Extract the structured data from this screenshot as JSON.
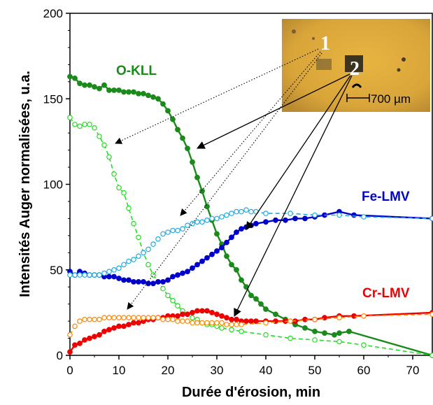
{
  "chart_data": {
    "type": "line",
    "title": "",
    "xlabel": "Durée d'érosion, min",
    "ylabel": "Intensités Auger normalisées, u.a.",
    "xlim": [
      0,
      74
    ],
    "ylim": [
      0,
      200
    ],
    "xticks": [
      "0",
      "10",
      "20",
      "30",
      "40",
      "50",
      "60",
      "70"
    ],
    "yticks": [
      "0",
      "50",
      "100",
      "150",
      "200"
    ],
    "grid": false,
    "series_labels": [
      {
        "text": "O-KLL",
        "color": "#1a8a1a"
      },
      {
        "text": "Fe-LMV",
        "color": "#0000cc"
      },
      {
        "text": "Cr-LMV",
        "color": "#ee0000"
      }
    ],
    "series": [
      {
        "key": "O-KLL",
        "color": "#1a8a1a",
        "style": "solid",
        "marker": "filled",
        "x": [
          0,
          1,
          2,
          3,
          4,
          5,
          6,
          7,
          8,
          9,
          10,
          11,
          12,
          13,
          14,
          15,
          16,
          17,
          18,
          19,
          20,
          21,
          22,
          23,
          24,
          25,
          26,
          27,
          28,
          29,
          30,
          31,
          32,
          33,
          34,
          35,
          36,
          37,
          38,
          39,
          40,
          42,
          44,
          46,
          48,
          50,
          52,
          54,
          55,
          57,
          74
        ],
        "y": [
          163,
          162,
          159,
          158,
          158,
          157,
          156,
          158,
          155,
          155,
          155,
          154,
          154,
          154,
          153,
          153,
          152,
          151,
          150,
          147,
          143,
          138,
          132,
          127,
          121,
          113,
          104,
          96,
          87,
          79,
          71,
          65,
          58,
          53,
          50,
          44,
          40,
          35,
          33,
          30,
          27,
          24,
          21,
          18,
          16,
          14,
          13,
          12,
          13,
          14,
          0
        ]
      },
      {
        "key": "O-KLL-2",
        "color": "#22dd22",
        "style": "dashed",
        "marker": "open",
        "x": [
          0,
          1,
          2,
          3,
          4,
          5,
          6,
          7,
          8,
          9,
          10,
          11,
          12,
          13,
          14,
          15,
          16,
          17,
          18,
          19,
          20,
          21,
          22,
          23,
          24,
          25,
          26,
          27,
          28,
          29,
          30,
          31,
          33,
          35,
          40,
          45,
          50,
          55,
          60,
          74
        ],
        "y": [
          139,
          135,
          134,
          135,
          135,
          133,
          128,
          123,
          116,
          106,
          98,
          95,
          86,
          77,
          69,
          60,
          53,
          47,
          43,
          39,
          35,
          32,
          29,
          26,
          24,
          22,
          21,
          19,
          18,
          18,
          17,
          16,
          15,
          14,
          12,
          10,
          9,
          8,
          6,
          0
        ]
      },
      {
        "key": "Fe-LMV",
        "color": "#0000cc",
        "style": "solid",
        "marker": "filled",
        "x": [
          0,
          1,
          2,
          3,
          4,
          5,
          6,
          7,
          8,
          9,
          10,
          11,
          12,
          13,
          14,
          15,
          16,
          17,
          18,
          19,
          20,
          21,
          22,
          23,
          24,
          25,
          26,
          27,
          28,
          29,
          30,
          31,
          32,
          33,
          34,
          35,
          36,
          37,
          38,
          40,
          42,
          44,
          46,
          48,
          50,
          52,
          55,
          58,
          74
        ],
        "y": [
          49,
          47,
          49,
          48,
          47,
          47,
          47,
          46,
          46,
          46,
          45,
          44,
          44,
          43,
          43,
          43,
          42,
          42,
          43,
          43,
          44,
          46,
          47,
          48,
          49,
          51,
          53,
          55,
          57,
          59,
          61,
          63,
          66,
          69,
          72,
          74,
          75,
          76,
          77,
          78,
          79,
          79,
          80,
          80,
          81,
          82,
          84,
          82,
          80
        ]
      },
      {
        "key": "Fe-LMV-2",
        "color": "#22aadd",
        "style": "dashed",
        "marker": "open",
        "x": [
          0,
          1,
          2,
          3,
          4,
          5,
          6,
          7,
          8,
          9,
          10,
          11,
          12,
          13,
          14,
          15,
          16,
          17,
          18,
          19,
          20,
          21,
          22,
          23,
          24,
          25,
          26,
          27,
          28,
          29,
          30,
          31,
          32,
          33,
          34,
          35,
          36,
          37,
          38,
          40,
          45,
          50,
          55,
          60,
          74
        ],
        "y": [
          47,
          47,
          47,
          47,
          47,
          47,
          47,
          48,
          49,
          50,
          51,
          53,
          55,
          56,
          58,
          60,
          62,
          65,
          68,
          71,
          72,
          73,
          73,
          74,
          76,
          77,
          78,
          78,
          79,
          80,
          80,
          81,
          82,
          83,
          84,
          84,
          85,
          84,
          84,
          83,
          83,
          82,
          82,
          81,
          80
        ]
      },
      {
        "key": "Cr-LMV",
        "color": "#ee0000",
        "style": "solid",
        "marker": "filled",
        "x": [
          0,
          1,
          2,
          3,
          4,
          5,
          6,
          7,
          8,
          9,
          10,
          11,
          12,
          13,
          14,
          15,
          16,
          17,
          18,
          19,
          20,
          21,
          22,
          23,
          24,
          25,
          26,
          27,
          28,
          29,
          30,
          31,
          32,
          33,
          34,
          35,
          36,
          37,
          38,
          40,
          42,
          44,
          46,
          48,
          50,
          52,
          55,
          58,
          74
        ],
        "y": [
          2,
          6,
          7,
          9,
          10,
          11,
          12,
          14,
          15,
          16,
          17,
          17,
          18,
          19,
          19,
          20,
          21,
          21,
          22,
          22,
          23,
          23,
          23,
          24,
          24,
          25,
          26,
          26,
          26,
          25,
          24,
          23,
          22,
          21,
          21,
          20,
          20,
          20,
          20,
          20,
          20,
          20,
          20,
          21,
          21,
          22,
          23,
          23,
          25
        ]
      },
      {
        "key": "Cr-LMV-2",
        "color": "#ff8800",
        "style": "dashed",
        "marker": "open",
        "x": [
          0,
          1,
          2,
          3,
          4,
          5,
          6,
          7,
          8,
          9,
          10,
          11,
          12,
          13,
          14,
          15,
          16,
          17,
          18,
          19,
          20,
          21,
          22,
          23,
          24,
          25,
          26,
          27,
          28,
          29,
          30,
          31,
          32,
          33,
          34,
          35,
          40,
          45,
          50,
          55,
          60,
          74
        ],
        "y": [
          12,
          17,
          20,
          21,
          21,
          21,
          21,
          22,
          22,
          22,
          22,
          22,
          22,
          22,
          22,
          22,
          22,
          22,
          22,
          21,
          21,
          21,
          20,
          20,
          20,
          19,
          19,
          19,
          19,
          19,
          19,
          19,
          18,
          18,
          18,
          18,
          19,
          20,
          21,
          22,
          23,
          24
        ]
      }
    ],
    "inset": {
      "labels": [
        "1",
        "2"
      ],
      "scale_text": "700 µm"
    }
  },
  "colors": {
    "inset_background": "#d9a53a",
    "inset_dark": "#5a4a2a"
  }
}
